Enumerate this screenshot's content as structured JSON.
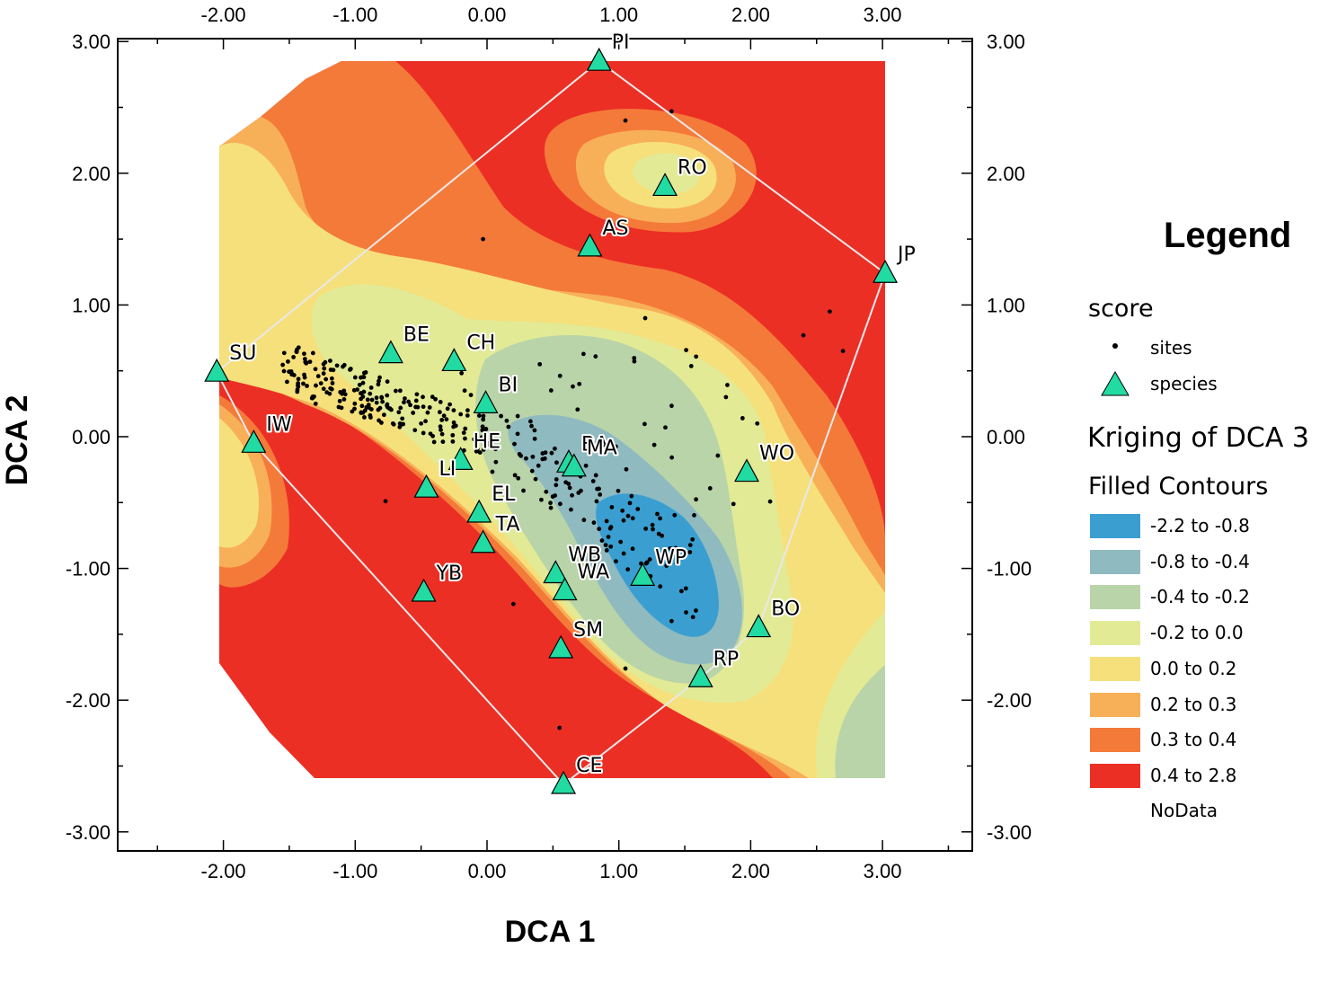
{
  "chart_data": {
    "type": "scatter",
    "title": "",
    "xlabel": "DCA 1",
    "ylabel": "DCA 2",
    "xlim": [
      -2.8,
      3.7
    ],
    "ylim": [
      -3.2,
      3.0
    ],
    "xticks": [
      -2,
      -1,
      0,
      1,
      2,
      3
    ],
    "yticks": [
      -3,
      -2,
      -1,
      0,
      1,
      2,
      3
    ],
    "tick_labels_x": [
      "-2.00",
      "-1.00",
      "0.00",
      "1.00",
      "2.00",
      "3.00"
    ],
    "tick_labels_y": [
      "-3.00",
      "-2.00",
      "-1.00",
      "0.00",
      "1.00",
      "2.00",
      "3.00"
    ],
    "grid": false,
    "legend_position": "right",
    "species": [
      {
        "label": "PI",
        "x": 0.85,
        "y": 2.85
      },
      {
        "label": "RO",
        "x": 1.35,
        "y": 1.9
      },
      {
        "label": "AS",
        "x": 0.78,
        "y": 1.44
      },
      {
        "label": "JP",
        "x": 3.02,
        "y": 1.24
      },
      {
        "label": "SU",
        "x": -2.05,
        "y": 0.49
      },
      {
        "label": "BE",
        "x": -0.73,
        "y": 0.63
      },
      {
        "label": "CH",
        "x": -0.25,
        "y": 0.57
      },
      {
        "label": "BI",
        "x": -0.01,
        "y": 0.25
      },
      {
        "label": "IW",
        "x": -1.77,
        "y": -0.05
      },
      {
        "label": "HE",
        "x": -0.2,
        "y": -0.18
      },
      {
        "label": "BA",
        "x": 0.62,
        "y": -0.2
      },
      {
        "label": "MA",
        "x": 0.66,
        "y": -0.23
      },
      {
        "label": "LI",
        "x": -0.46,
        "y": -0.39
      },
      {
        "label": "WO",
        "x": 1.97,
        "y": -0.27
      },
      {
        "label": "EL",
        "x": -0.06,
        "y": -0.58
      },
      {
        "label": "TA",
        "x": -0.03,
        "y": -0.81
      },
      {
        "label": "WB",
        "x": 0.52,
        "y": -1.04
      },
      {
        "label": "WA",
        "x": 0.59,
        "y": -1.17
      },
      {
        "label": "WP",
        "x": 1.18,
        "y": -1.06
      },
      {
        "label": "YB",
        "x": -0.48,
        "y": -1.18
      },
      {
        "label": "BO",
        "x": 2.06,
        "y": -1.45
      },
      {
        "label": "SM",
        "x": 0.56,
        "y": -1.61
      },
      {
        "label": "RP",
        "x": 1.62,
        "y": -1.83
      },
      {
        "label": "CE",
        "x": 0.58,
        "y": -2.64
      }
    ],
    "hull": [
      "PI",
      "JP",
      "BO",
      "RP",
      "CE",
      "IW",
      "SU",
      "PI"
    ],
    "sites_sample": [
      [
        -1.0,
        0.45
      ],
      [
        -0.8,
        0.3
      ],
      [
        -1.3,
        0.25
      ],
      [
        -0.5,
        0.1
      ],
      [
        0.4,
        0.55
      ],
      [
        0.7,
        0.4
      ],
      [
        1.2,
        0.9
      ],
      [
        2.6,
        0.95
      ],
      [
        2.4,
        0.77
      ],
      [
        1.05,
        2.4
      ],
      [
        1.4,
        2.47
      ],
      [
        -0.03,
        1.5
      ],
      [
        0.85,
        -0.7
      ],
      [
        1.4,
        -1.4
      ],
      [
        0.55,
        -2.21
      ],
      [
        1.05,
        -1.76
      ],
      [
        -0.77,
        -0.49
      ],
      [
        2.7,
        0.65
      ],
      [
        2.05,
        0.1
      ],
      [
        0.2,
        -1.27
      ]
    ]
  },
  "labels": {
    "x_axis_title": "DCA 1",
    "y_axis_title": "DCA 2"
  },
  "legend": {
    "title": "Legend",
    "score_heading": "score",
    "sites_label": "sites",
    "species_label": "species",
    "kriging_heading": "Kriging of DCA 3",
    "filled_heading": "Filled Contours",
    "classes": [
      {
        "label": "-2.2 to -0.8",
        "color": "#3a9fd0"
      },
      {
        "label": "-0.8 to -0.4",
        "color": "#8fbac0"
      },
      {
        "label": "-0.4 to -0.2",
        "color": "#b9d4a8"
      },
      {
        "label": "-0.2 to 0.0",
        "color": "#e2ea96"
      },
      {
        "label": "0.0 to 0.2",
        "color": "#f6e07c"
      },
      {
        "label": "0.2 to 0.3",
        "color": "#f8b058"
      },
      {
        "label": "0.3 to 0.4",
        "color": "#f47a3a"
      },
      {
        "label": "0.4 to 2.8",
        "color": "#ec2f25"
      }
    ],
    "nodata_label": "NoData"
  },
  "colors": {
    "species_fill": "#22dba2",
    "site_dot": "#000000",
    "hull_line": "#e8e8e8"
  }
}
